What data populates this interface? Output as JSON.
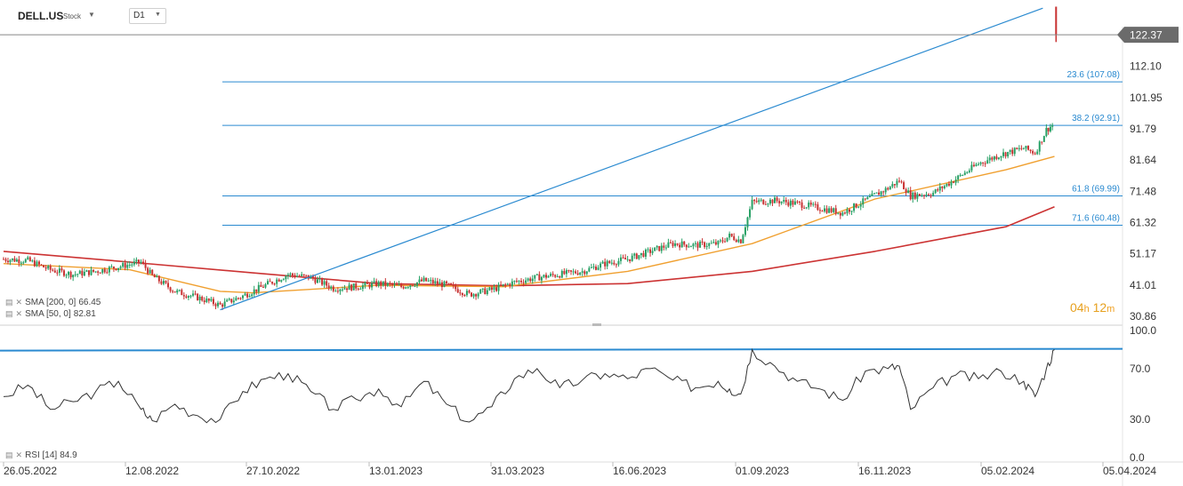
{
  "header": {
    "symbol": "DELL.US",
    "symbol_type": "Stock",
    "timeframe": "D1",
    "dropdown_icon": "caret-down-icon"
  },
  "countdown": {
    "hours": "04",
    "hours_unit": "h",
    "minutes": "12",
    "minutes_unit": "m"
  },
  "indicators": {
    "sma200": {
      "label": "SMA [200, 0]",
      "value": "66.45",
      "color": "#cc3333"
    },
    "sma50": {
      "label": "SMA [50, 0]",
      "value": "82.81",
      "color": "#f0a030"
    },
    "rsi": {
      "label": "RSI [14]",
      "value": "84.9",
      "color": "#333333"
    }
  },
  "colors": {
    "up": "#27a065",
    "down": "#c83232",
    "fib": "#2a8ad0",
    "trend": "#2a8ad0",
    "price_badge": "#6b6b6b",
    "rsi_level": "#2a8ad0",
    "price_line": "#888888"
  },
  "chart_data": {
    "type": "candlestick",
    "price_axis": {
      "ticks": [
        "112.10",
        "101.95",
        "91.79",
        "81.64",
        "71.48",
        "61.32",
        "51.17",
        "41.01",
        "30.86"
      ],
      "range": [
        28,
        125
      ]
    },
    "current_price": "122.37",
    "x_ticks": [
      "26.05.2022",
      "12.08.2022",
      "27.10.2022",
      "13.01.2023",
      "31.03.2023",
      "16.06.2023",
      "01.09.2023",
      "16.11.2023",
      "05.02.2024",
      "05.04.2024"
    ],
    "x_range": [
      "2022-05-26",
      "2024-04-05"
    ],
    "fibonacci": [
      {
        "label": "23.6 (107.08)",
        "value": 107.08
      },
      {
        "label": "38.2 (92.91)",
        "value": 92.91
      },
      {
        "label": "61.8 (69.99)",
        "value": 69.99
      },
      {
        "label": "71.6 (60.48)",
        "value": 60.48
      }
    ],
    "trendline": [
      {
        "date": "2022-10-07",
        "price": 33.0
      },
      {
        "date": "2024-03-01",
        "price": 131.0
      }
    ],
    "close_series": [
      [
        "2022-05-26",
        49.5
      ],
      [
        "2022-06-10",
        49.0
      ],
      [
        "2022-06-24",
        46.0
      ],
      [
        "2022-07-08",
        44.5
      ],
      [
        "2022-07-22",
        45.5
      ],
      [
        "2022-08-05",
        47.0
      ],
      [
        "2022-08-19",
        48.5
      ],
      [
        "2022-08-26",
        44.0
      ],
      [
        "2022-09-09",
        39.0
      ],
      [
        "2022-09-23",
        37.0
      ],
      [
        "2022-10-07",
        34.5
      ],
      [
        "2022-10-21",
        37.5
      ],
      [
        "2022-11-04",
        41.0
      ],
      [
        "2022-11-18",
        44.5
      ],
      [
        "2022-12-02",
        43.5
      ],
      [
        "2022-12-16",
        40.0
      ],
      [
        "2022-12-30",
        40.5
      ],
      [
        "2023-01-13",
        41.5
      ],
      [
        "2023-01-27",
        40.5
      ],
      [
        "2023-02-10",
        42.5
      ],
      [
        "2023-02-24",
        41.0
      ],
      [
        "2023-03-10",
        38.0
      ],
      [
        "2023-03-24",
        39.5
      ],
      [
        "2023-04-07",
        42.0
      ],
      [
        "2023-04-21",
        43.5
      ],
      [
        "2023-05-05",
        44.5
      ],
      [
        "2023-05-19",
        45.5
      ],
      [
        "2023-06-02",
        48.0
      ],
      [
        "2023-06-16",
        49.5
      ],
      [
        "2023-06-30",
        52.0
      ],
      [
        "2023-07-14",
        54.5
      ],
      [
        "2023-07-28",
        54.0
      ],
      [
        "2023-08-11",
        54.5
      ],
      [
        "2023-08-18",
        57.0
      ],
      [
        "2023-08-25",
        55.5
      ],
      [
        "2023-09-01",
        68.0
      ],
      [
        "2023-09-15",
        68.5
      ],
      [
        "2023-09-29",
        67.5
      ],
      [
        "2023-10-13",
        66.0
      ],
      [
        "2023-10-27",
        64.5
      ],
      [
        "2023-11-10",
        68.5
      ],
      [
        "2023-11-24",
        72.5
      ],
      [
        "2023-12-01",
        75.0
      ],
      [
        "2023-12-08",
        70.0
      ],
      [
        "2023-12-22",
        71.0
      ],
      [
        "2024-01-05",
        75.5
      ],
      [
        "2024-01-19",
        80.5
      ],
      [
        "2024-02-02",
        83.5
      ],
      [
        "2024-02-16",
        85.5
      ],
      [
        "2024-02-23",
        84.0
      ],
      [
        "2024-03-01",
        91.5
      ],
      [
        "2024-03-06",
        93.5
      ]
    ],
    "sma200_series": [
      [
        "2022-05-26",
        52.0
      ],
      [
        "2022-08-12",
        48.5
      ],
      [
        "2022-10-27",
        45.0
      ],
      [
        "2023-01-13",
        41.5
      ],
      [
        "2023-03-31",
        40.8
      ],
      [
        "2023-06-16",
        41.5
      ],
      [
        "2023-09-01",
        45.5
      ],
      [
        "2023-11-16",
        52.0
      ],
      [
        "2024-02-05",
        60.0
      ],
      [
        "2024-03-06",
        66.45
      ]
    ],
    "sma50_series": [
      [
        "2022-05-26",
        48.0
      ],
      [
        "2022-08-12",
        46.0
      ],
      [
        "2022-10-07",
        39.0
      ],
      [
        "2022-10-27",
        38.5
      ],
      [
        "2023-01-13",
        41.0
      ],
      [
        "2023-03-31",
        40.5
      ],
      [
        "2023-06-16",
        45.5
      ],
      [
        "2023-09-01",
        54.5
      ],
      [
        "2023-11-16",
        69.0
      ],
      [
        "2024-02-05",
        78.5
      ],
      [
        "2024-03-06",
        82.81
      ]
    ],
    "last_candle": {
      "date": "2024-03-07",
      "open": 131.5,
      "close": 122.37,
      "high": 131.5,
      "low": 120.0
    },
    "rsi_axis": {
      "ticks": [
        "100.0",
        "70.0",
        "30.0",
        "0.0"
      ],
      "range": [
        0,
        100
      ],
      "level": 84.9
    },
    "rsi_series": [
      [
        "2022-05-26",
        48
      ],
      [
        "2022-06-10",
        57
      ],
      [
        "2022-06-24",
        38
      ],
      [
        "2022-07-08",
        44
      ],
      [
        "2022-07-22",
        52
      ],
      [
        "2022-08-05",
        60
      ],
      [
        "2022-08-19",
        38
      ],
      [
        "2022-08-26",
        29
      ],
      [
        "2022-09-09",
        42
      ],
      [
        "2022-09-23",
        33
      ],
      [
        "2022-10-07",
        30
      ],
      [
        "2022-10-21",
        52
      ],
      [
        "2022-11-04",
        62
      ],
      [
        "2022-11-18",
        66
      ],
      [
        "2022-12-02",
        52
      ],
      [
        "2022-12-16",
        38
      ],
      [
        "2022-12-30",
        46
      ],
      [
        "2023-01-13",
        54
      ],
      [
        "2023-01-27",
        40
      ],
      [
        "2023-02-10",
        60
      ],
      [
        "2023-02-24",
        42
      ],
      [
        "2023-03-10",
        28
      ],
      [
        "2023-03-24",
        40
      ],
      [
        "2023-04-07",
        62
      ],
      [
        "2023-04-21",
        70
      ],
      [
        "2023-05-05",
        55
      ],
      [
        "2023-05-19",
        61
      ],
      [
        "2023-06-02",
        66
      ],
      [
        "2023-06-16",
        62
      ],
      [
        "2023-06-30",
        70
      ],
      [
        "2023-07-14",
        61
      ],
      [
        "2023-07-28",
        55
      ],
      [
        "2023-08-11",
        60
      ],
      [
        "2023-08-18",
        54
      ],
      [
        "2023-08-25",
        50
      ],
      [
        "2023-09-01",
        85
      ],
      [
        "2023-09-15",
        72
      ],
      [
        "2023-09-29",
        60
      ],
      [
        "2023-10-13",
        54
      ],
      [
        "2023-10-27",
        45
      ],
      [
        "2023-11-10",
        68
      ],
      [
        "2023-11-24",
        70
      ],
      [
        "2023-12-01",
        72
      ],
      [
        "2023-12-08",
        38
      ],
      [
        "2023-12-22",
        55
      ],
      [
        "2024-01-05",
        65
      ],
      [
        "2024-01-19",
        62
      ],
      [
        "2024-02-02",
        68
      ],
      [
        "2024-02-16",
        60
      ],
      [
        "2024-02-23",
        48
      ],
      [
        "2024-03-01",
        70
      ],
      [
        "2024-03-06",
        84.9
      ]
    ]
  }
}
